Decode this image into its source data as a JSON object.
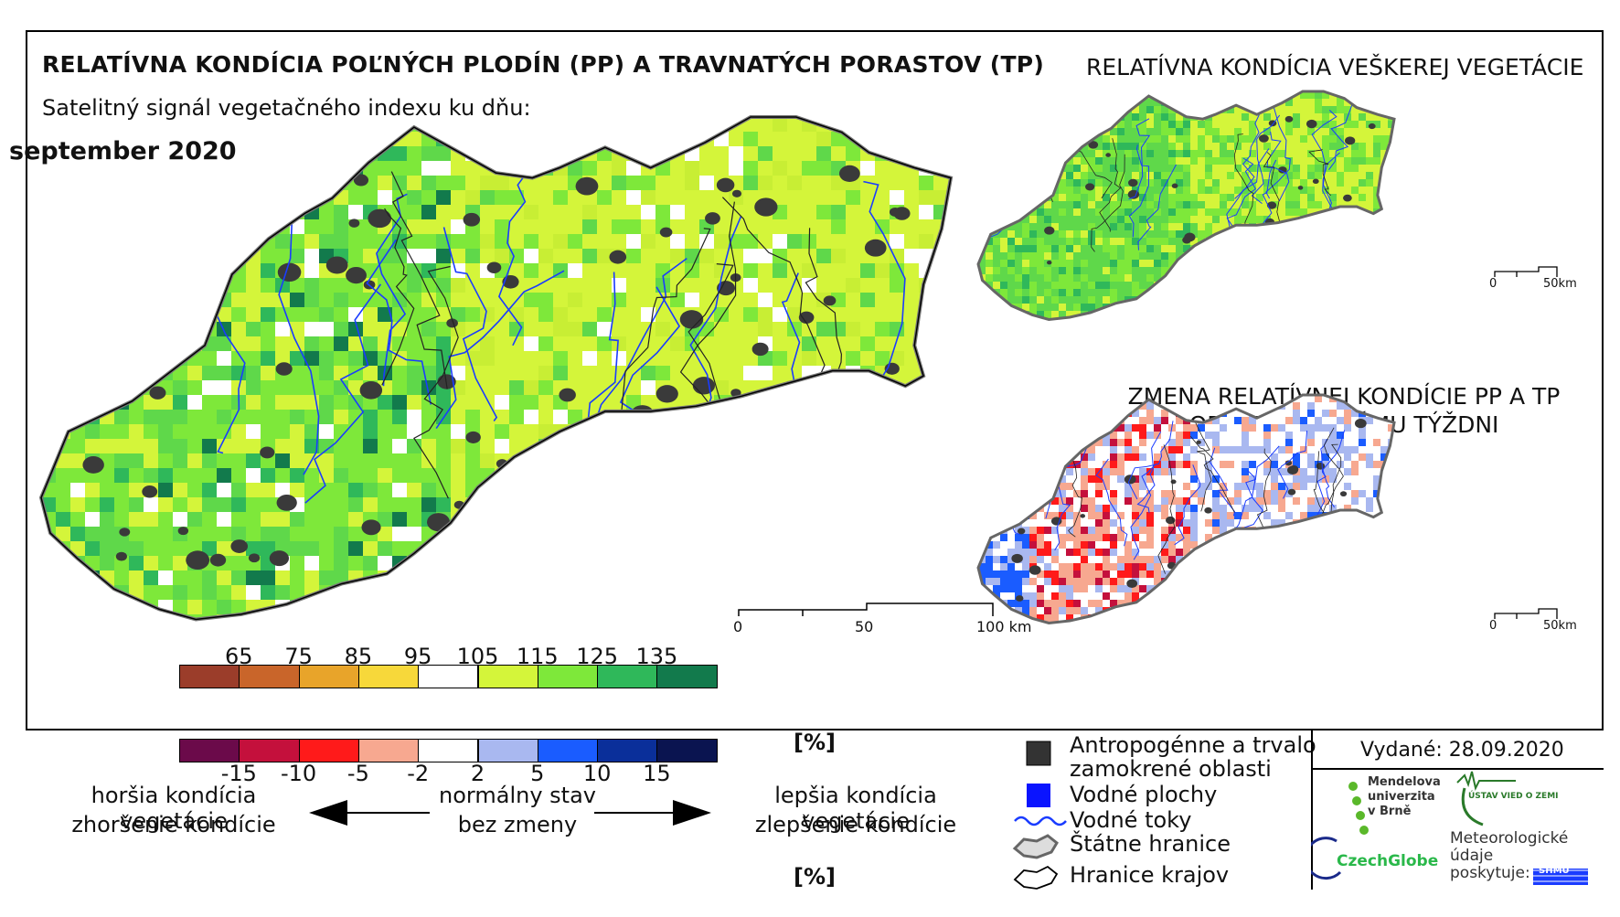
{
  "titles": {
    "main": "RELATÍVNA KONDÍCIA POĽNÝCH PLODÍN (PP) A TRAVNATÝCH PORASTOV (TP)",
    "subtitle": "Satelitný signál vegetačného indexu ku dňu:",
    "month": "september 2020",
    "right_top": "RELATÍVNA KONDÍCIA VEŠKEREJ VEGETÁCIE",
    "right_change_line1": "ZMENA RELATÍVNEJ KONDÍCIE PP A TP",
    "right_change_line2": "OPROTI MINULÉMU TÝŽDNI"
  },
  "scale_main": {
    "labels": [
      "0",
      "50",
      "100 km"
    ]
  },
  "scale_small": {
    "labels": [
      "0",
      "50km"
    ]
  },
  "legend_condition": {
    "ticks": [
      "65",
      "75",
      "85",
      "95",
      "105",
      "115",
      "125",
      "135"
    ],
    "unit": "[%]",
    "colors": [
      "#9b3d2a",
      "#c9652a",
      "#e8a42a",
      "#f7d83a",
      "#ffffff",
      "#d4f53a",
      "#7ee83a",
      "#2fb85a",
      "#127a4c"
    ]
  },
  "legend_change": {
    "ticks": [
      "-15",
      "-10",
      "-5",
      "-2",
      "2",
      "5",
      "10",
      "15"
    ],
    "unit": "[%]",
    "colors": [
      "#6b0a4a",
      "#c4103c",
      "#ff1a1a",
      "#f7a890",
      "#ffffff",
      "#a9b8f0",
      "#1a5cff",
      "#0a2f9a",
      "#0a1450"
    ]
  },
  "legend_text": {
    "worse": "horšia kondícia vegetácie",
    "worse_change": "zhoršenie kondície",
    "normal": "normálny stav",
    "nochange": "bez zmeny",
    "better": "lepšia kondícia vegetácie",
    "better_change": "zlepšenie kondície"
  },
  "symbols": {
    "anthropogenic_line1": "Antropogénne a trvalo",
    "anthropogenic_line2": "zamokrené oblasti",
    "water": "Vodné plochy",
    "rivers": "Vodné toky",
    "borders": "Štátne hranice",
    "regions": "Hranice krajov",
    "colors": {
      "anthropogenic": "#333333",
      "water": "#0a14ff",
      "rivers": "#1a3cff"
    }
  },
  "issued": "Vydané: 28.09.2020",
  "logos": {
    "mendel": [
      "Mendelova",
      "univerzita",
      "v Brně"
    ],
    "czechglobe": "CzechGlobe",
    "ustav": "ÚSTAV VIED O ZEMI",
    "meteo": [
      "Meteorologické",
      "údaje",
      "poskytuje:"
    ],
    "shmu": "SHMÚ"
  },
  "map_palette": {
    "main": [
      "#d4f53a",
      "#c8ee34",
      "#7ee83a",
      "#5fd84a",
      "#2fb85a",
      "#ffffff"
    ],
    "vegetation": [
      "#d4f53a",
      "#7ee83a",
      "#5fd84a",
      "#2fb85a"
    ],
    "change": [
      "#ffffff",
      "#a9b8f0",
      "#f7a890",
      "#1a5cff",
      "#ff1a1a",
      "#c4103c"
    ]
  }
}
